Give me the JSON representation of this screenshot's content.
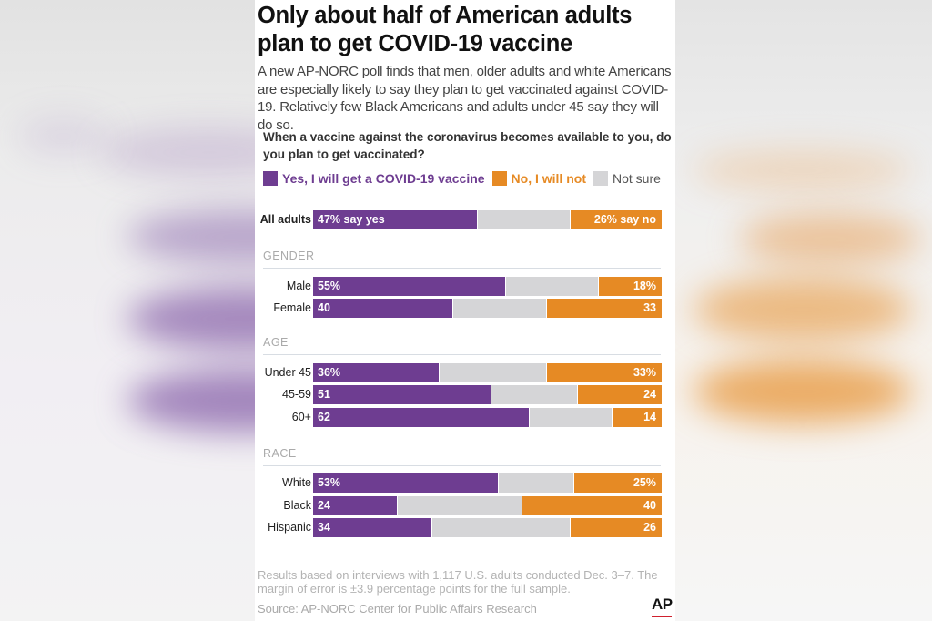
{
  "colors": {
    "yes": "#6e3d91",
    "no": "#e68a24",
    "not_sure": "#d5d5d7",
    "section_label": "#aaaaaa"
  },
  "header": {
    "title": "Only about half of American adults plan to get COVID-19 vaccine",
    "subtitle": "A new AP-NORC poll finds that men, older adults and white Americans are especially likely to say they plan to get vaccinated against COVID-19. Relatively few Black Americans and adults under 45 say they will do so.",
    "question": "When a vaccine against the coronavirus becomes available to you, do you plan to get vaccinated?"
  },
  "footer": {
    "note": "Results based on interviews with 1,117 U.S. adults conducted Dec. 3–7. The margin of error is ±3.9 percentage points for the full sample.",
    "source": "Source: AP-NORC Center for Public Affairs Research",
    "logo": "AP"
  },
  "chart_data": {
    "type": "bar",
    "orientation": "horizontal",
    "stacked": true,
    "title": "When a vaccine against the coronavirus becomes available to you, do you plan to get vaccinated?",
    "legend": [
      "Yes, I will get a COVID-19 vaccine",
      "No, I will not",
      "Not sure"
    ],
    "legend_position": "top-left",
    "units": "percent",
    "rows": [
      {
        "group": "",
        "label": "All adults",
        "yes": 47,
        "no": 26,
        "yes_text": "47% say yes",
        "no_text": "26% say no"
      },
      {
        "group": "GENDER",
        "label": "Male",
        "yes": 55,
        "no": 18,
        "yes_text": "55%",
        "no_text": "18%"
      },
      {
        "group": "GENDER",
        "label": "Female",
        "yes": 40,
        "no": 33,
        "yes_text": "40",
        "no_text": "33"
      },
      {
        "group": "AGE",
        "label": "Under 45",
        "yes": 36,
        "no": 33,
        "yes_text": "36%",
        "no_text": "33%"
      },
      {
        "group": "AGE",
        "label": "45-59",
        "yes": 51,
        "no": 24,
        "yes_text": "51",
        "no_text": "24"
      },
      {
        "group": "AGE",
        "label": "60+",
        "yes": 62,
        "no": 14,
        "yes_text": "62",
        "no_text": "14"
      },
      {
        "group": "RACE",
        "label": "White",
        "yes": 53,
        "no": 25,
        "yes_text": "53%",
        "no_text": "25%"
      },
      {
        "group": "RACE",
        "label": "Black",
        "yes": 24,
        "no": 40,
        "yes_text": "24",
        "no_text": "40"
      },
      {
        "group": "RACE",
        "label": "Hispanic",
        "yes": 34,
        "no": 26,
        "yes_text": "34",
        "no_text": "26"
      }
    ],
    "sections": [
      "GENDER",
      "AGE",
      "RACE"
    ]
  }
}
